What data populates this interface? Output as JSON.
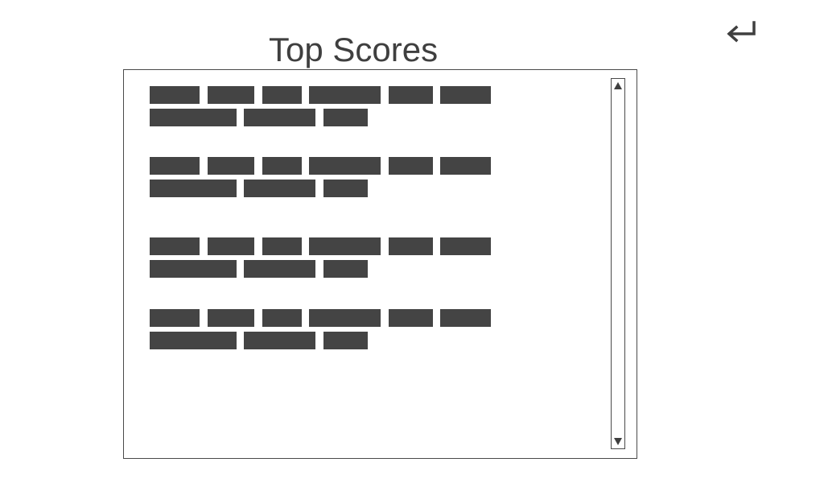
{
  "header": {
    "title": "Top Scores"
  },
  "icons": {
    "back": "return-arrow-icon",
    "scroll_up": "triangle-up-icon",
    "scroll_down": "triangle-down-icon"
  },
  "colors": {
    "text": "#3f3f3f",
    "placeholder_block": "#444444",
    "border": "#4a4a4a",
    "background": "#ffffff"
  },
  "score_list": {
    "entry_count": 4
  }
}
